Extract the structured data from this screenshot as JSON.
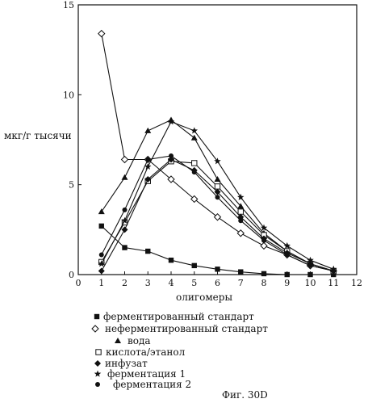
{
  "chart_data": {
    "type": "line",
    "ylabel": "мкг/г тысячи",
    "xlabel": "олигомеры",
    "xlim": [
      0,
      12
    ],
    "ylim": [
      0,
      15
    ],
    "x_ticks": [
      0,
      1,
      2,
      3,
      4,
      5,
      6,
      7,
      8,
      9,
      10,
      11,
      12
    ],
    "y_ticks": [
      0,
      5,
      10,
      15
    ],
    "grid": false,
    "legend_position": "bottom-left",
    "x": [
      1,
      2,
      3,
      4,
      5,
      6,
      7,
      8,
      9,
      10,
      11
    ],
    "series": [
      {
        "name": "ферментированный стандарт",
        "marker": "square",
        "values": [
          2.7,
          1.5,
          1.3,
          0.8,
          0.5,
          0.3,
          0.15,
          0.05,
          0.0,
          0.0,
          0.0
        ]
      },
      {
        "name": "неферментированный стандарт",
        "marker": "diamond-open",
        "values": [
          13.4,
          6.4,
          6.4,
          5.3,
          4.2,
          3.2,
          2.3,
          1.6,
          1.1,
          0.5,
          0.2
        ]
      },
      {
        "name": "вода",
        "marker": "triangle",
        "values": [
          3.5,
          5.4,
          8.0,
          8.6,
          7.6,
          5.3,
          3.8,
          2.3,
          1.3,
          0.6,
          0.2
        ]
      },
      {
        "name": "кислота/этанол",
        "marker": "square-open",
        "values": [
          0.7,
          2.9,
          5.2,
          6.3,
          6.2,
          4.9,
          3.5,
          2.2,
          1.3,
          0.6,
          0.2
        ]
      },
      {
        "name": "инфузат",
        "marker": "diamond",
        "values": [
          0.2,
          2.5,
          5.3,
          6.4,
          5.8,
          4.6,
          3.2,
          2.0,
          1.2,
          0.6,
          0.2
        ]
      },
      {
        "name": "ферментация 1",
        "marker": "star",
        "values": [
          0.6,
          3.0,
          6.0,
          8.5,
          8.0,
          6.3,
          4.3,
          2.6,
          1.6,
          0.8,
          0.3
        ]
      },
      {
        "name": "ферментация 2",
        "marker": "circle",
        "values": [
          1.1,
          3.6,
          6.4,
          6.6,
          5.7,
          4.3,
          3.0,
          1.9,
          1.1,
          0.5,
          0.2
        ]
      }
    ]
  },
  "caption": "Фиг. 30D"
}
